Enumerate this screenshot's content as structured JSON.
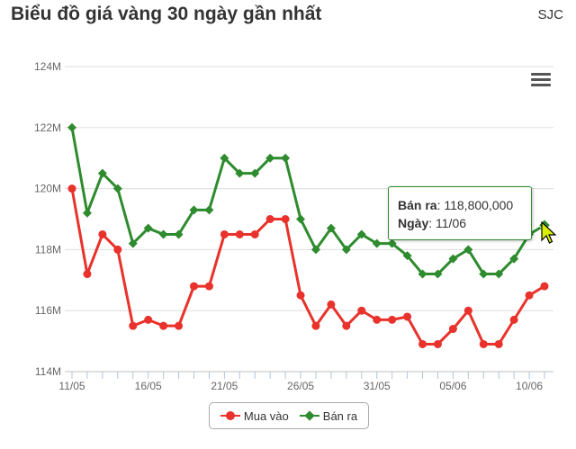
{
  "header": {
    "title": "Biểu đồ giá vàng 30 ngày gần nhất",
    "brand": "SJC"
  },
  "menu_icon": "hamburger-menu-icon",
  "tooltip": {
    "series_label": "Bán ra",
    "value_text": "118,800,000",
    "date_label": "Ngày",
    "date_value": "11/06"
  },
  "colors": {
    "mua_vao": "#e8322b",
    "ban_ra": "#2e8b2e",
    "grid": "#dddddd",
    "axis": "#b0c4de"
  },
  "chart_data": {
    "type": "line",
    "title": "Biểu đồ giá vàng 30 ngày gần nhất",
    "x": [
      "11/05",
      "12/05",
      "13/05",
      "14/05",
      "15/05",
      "16/05",
      "17/05",
      "18/05",
      "19/05",
      "20/05",
      "21/05",
      "22/05",
      "23/05",
      "24/05",
      "25/05",
      "26/05",
      "27/05",
      "28/05",
      "29/05",
      "30/05",
      "31/05",
      "01/06",
      "02/06",
      "03/06",
      "04/06",
      "05/06",
      "06/06",
      "07/06",
      "08/06",
      "09/06",
      "10/06",
      "11/06"
    ],
    "x_tick_labels": [
      "11/05",
      "16/05",
      "21/05",
      "26/05",
      "31/05",
      "05/06",
      "10/06"
    ],
    "y_tick_labels": [
      "114M",
      "116M",
      "118M",
      "120M",
      "122M",
      "124M"
    ],
    "ylim": [
      114000000,
      124000000
    ],
    "grid": true,
    "legend_position": "bottom-center",
    "series": [
      {
        "name": "Mua vào",
        "marker": "circle",
        "values": [
          120000000,
          117200000,
          118500000,
          118000000,
          115500000,
          115700000,
          115500000,
          115500000,
          116800000,
          116800000,
          118500000,
          118500000,
          118500000,
          119000000,
          119000000,
          116500000,
          115500000,
          116200000,
          115500000,
          116000000,
          115700000,
          115700000,
          115800000,
          114900000,
          114900000,
          115400000,
          116000000,
          114900000,
          114900000,
          115700000,
          116500000,
          116800000
        ]
      },
      {
        "name": "Bán ra",
        "marker": "diamond",
        "values": [
          122000000,
          119200000,
          120500000,
          120000000,
          118200000,
          118700000,
          118500000,
          118500000,
          119300000,
          119300000,
          121000000,
          120500000,
          120500000,
          121000000,
          121000000,
          119000000,
          118000000,
          118700000,
          118000000,
          118500000,
          118200000,
          118200000,
          117800000,
          117200000,
          117200000,
          117700000,
          118000000,
          117200000,
          117200000,
          117700000,
          118500000,
          118800000
        ]
      }
    ]
  }
}
